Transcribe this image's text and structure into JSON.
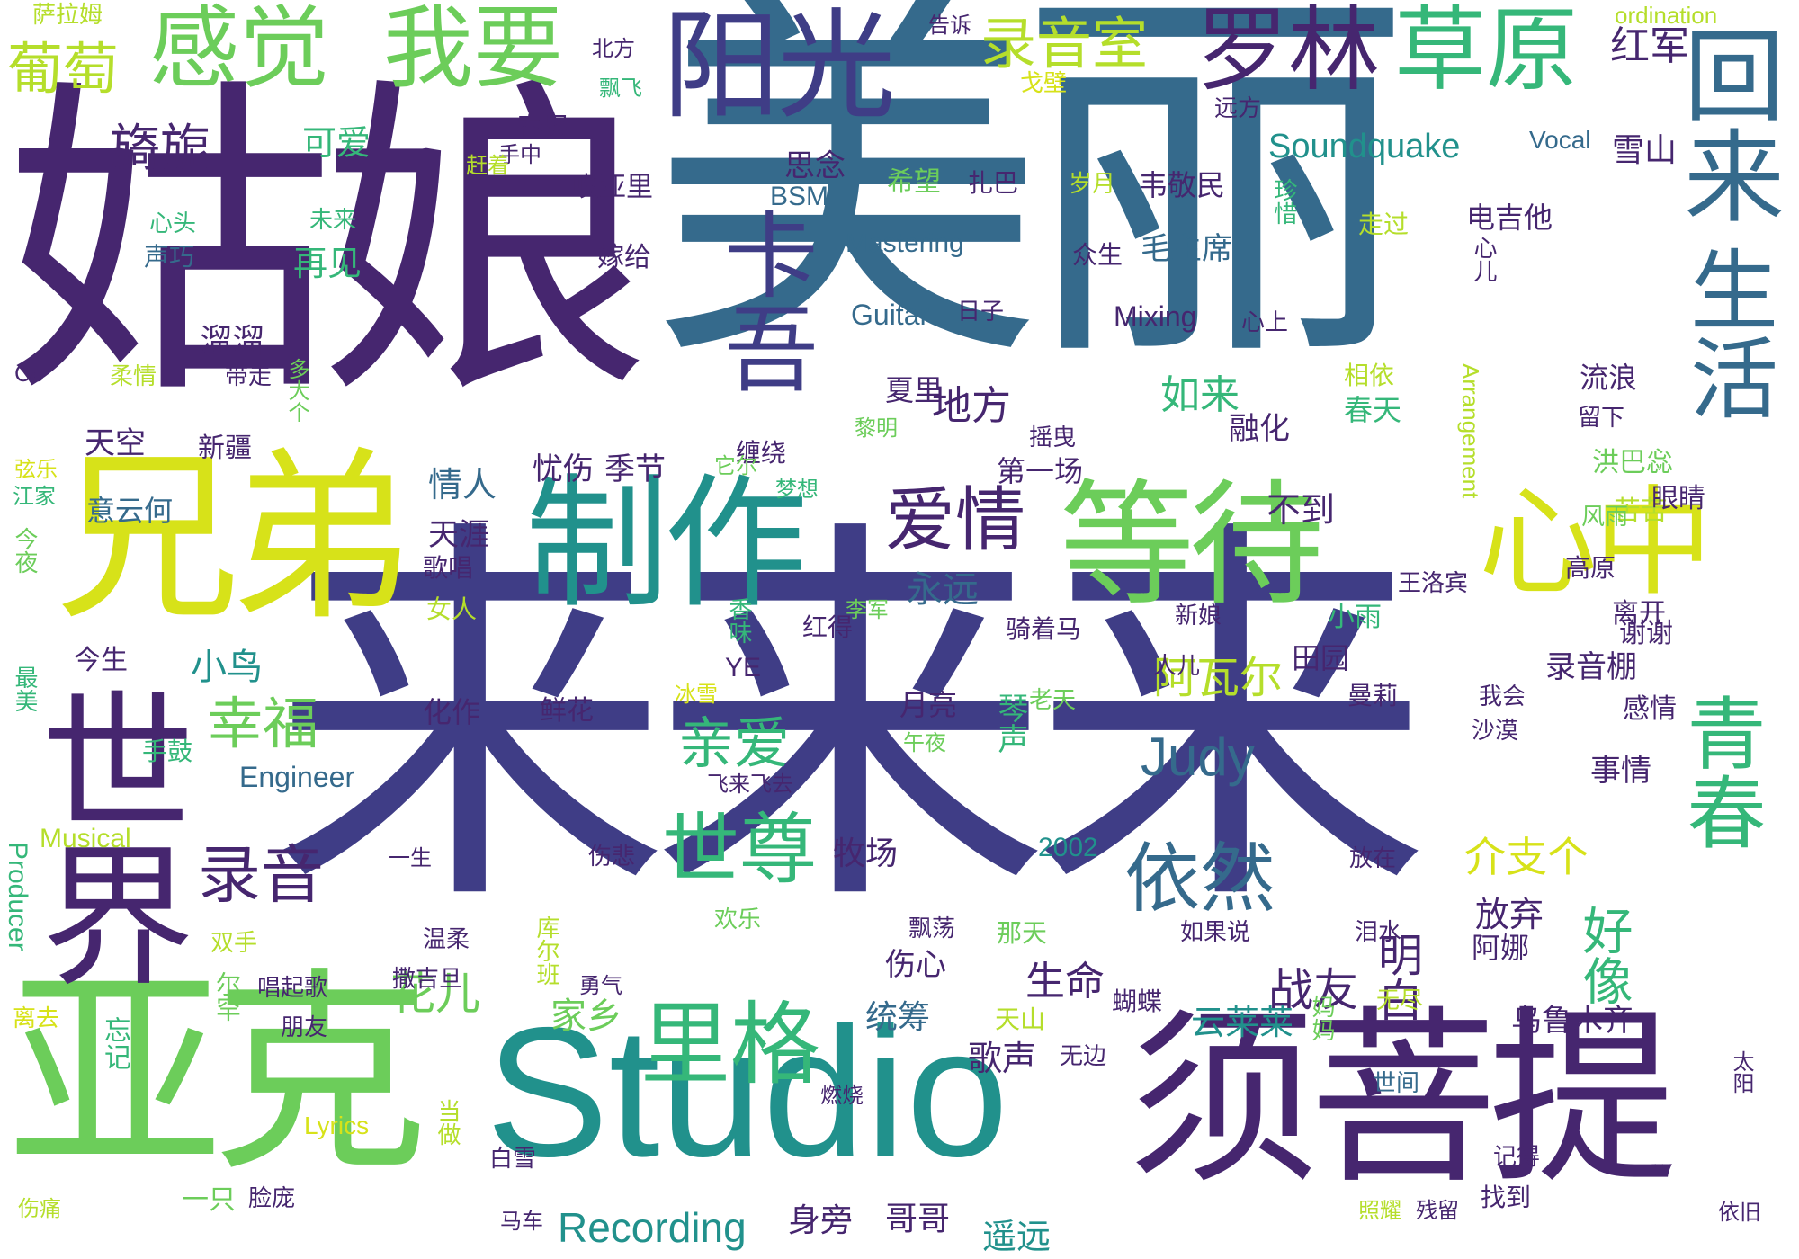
{
  "palette": {
    "background": "#ffffff",
    "dark_purple": "#46266f",
    "indigo": "#3f3d86",
    "blue": "#356a8c",
    "teal": "#21918c",
    "green": "#35b779",
    "light_green": "#6ccd5a",
    "yellow_green": "#b5de2b",
    "yellow": "#d7e219"
  },
  "words": {
    "meili": "美丽",
    "guniang": "姑娘",
    "laila": "来来来",
    "yake": "亚克",
    "studio": "Studio",
    "xuputi": "须菩提",
    "xiongdi": "兄弟",
    "zhizuo": "制作",
    "dengdai": "等待",
    "xinzhong": "心中",
    "yangguang": "阳光",
    "luolin": "罗林",
    "caoyuan": "草原",
    "ganjue": "感觉",
    "woyao": "我要",
    "huilai": "回来",
    "shenghuo": "生活",
    "putao": "葡萄",
    "luyinshi": "录音室",
    "qingchun": "青春",
    "kawa": "卡吾",
    "shijie": "世界",
    "shizun": "世尊",
    "aiqing": "爱情",
    "yiran": "依然",
    "lige": "里格",
    "luyin": "录音",
    "judy": "Judy",
    "qinai": "亲爱",
    "xingfu": "幸福",
    "soundquake": "Soundquake",
    "recording": "Recording",
    "hongjun": "红军",
    "xueshan": "雪山",
    "qixuan": "旖旎",
    "haoxiang": "好像",
    "jiezhige": "介支个",
    "mingbai": "明白",
    "zhanyou": "战友",
    "huaer": "花儿",
    "jiaxiang": "家乡",
    "awaer": "阿瓦尔",
    "shengming": "生命",
    "yunlailai": "云莱莱",
    "gesheng": "歌声",
    "yaoyuan": "遥远",
    "gege": "哥哥",
    "shenpang": "身旁",
    "difang": "地方",
    "rulai": "如来",
    "luyinpeng": "录音棚",
    "xiaoniao": "小鸟",
    "yongyuan": "永远",
    "budao": "不到",
    "tianya": "天涯",
    "qingren": "情人",
    "jijie": "季节",
    "youshang": "忧伤",
    "tiankong": "天空",
    "xinjiang": "新疆",
    "diyichang": "第一场",
    "ronghua": "融化",
    "sinian": "思念",
    "keai": "可爱",
    "zaijian": "再见",
    "liuliu": "溜溜",
    "daizou": "带走",
    "maozhuxi": "毛主席",
    "zhongsheng": "众生",
    "weiminmin": "韦敬民",
    "dianjita": "电吉他",
    "xiwang": "希望",
    "zhaba": "扎巴",
    "suiyue": "岁月",
    "bsm": "BSM",
    "aiyali": "哎亚里",
    "jiageii": "嫁给",
    "chunfeng": "春风",
    "beifang": "北方",
    "yuanfang": "远方",
    "piaofei": "飘飞",
    "gaosu": "告诉",
    "gebi": "戈壁",
    "vocal": "Vocal",
    "ordination": "ordination",
    "salamu": "萨拉姆",
    "mastering": "Mastering",
    "guitar": "Guitar",
    "mixing": "Mixing",
    "rizi": "日子",
    "xinshang": "心上",
    "xiner": "心儿",
    "zouguo": "走过",
    "zhenxi": "珍惜",
    "shouzhong": "手中",
    "ganzhe": "赶着",
    "xintou": "心头",
    "weilai": "未来",
    "shengqiao": "声巧",
    "co": "Co",
    "rouqing": "柔情",
    "duodage": "多大个",
    "xiangyi": "相依",
    "chuntian": "春天",
    "liulang": "流浪",
    "liuxia": "留下",
    "arrangement": "Arrangement",
    "xialii": "夏里",
    "liming": "黎明",
    "yaoye": "摇曳",
    "chanrao": "缠绕",
    "taer": "它尔",
    "mengxiang": "梦想",
    "hongbaci": "洪巴惢",
    "kuku": "苦苦",
    "yanjing": "眼睛",
    "fengyu": "风雨",
    "gaoyuan": "高原",
    "wangluobin": "王洛宾",
    "xiaoyu": "小雨",
    "tianyuan": "田园",
    "likai": "离开",
    "xiexie": "谢谢",
    "xianshu": "弦乐",
    "jiangjia": "江家",
    "yiyunhe": "意云何",
    "jinye": "今夜",
    "gechang": "歌唱",
    "nvren": "女人",
    "jinsheng": "今生",
    "zuimei": "最美",
    "lijun": "李军",
    "xiangwei": "香味",
    "hongde": "红得",
    "qizhema": "骑着马",
    "xinniang": "新娘",
    "renr": "人儿",
    "laotian": "老天",
    "qinsheng": "琴声",
    "yueliang": "月亮",
    "ye": "YE",
    "huazuo": "化作",
    "xianhua": "鲜花",
    "bingxue": "冰雪",
    "manli": "曼莉",
    "wohui": "我会",
    "shamo": "沙漠",
    "ganqing": "感情",
    "shiqing": "事情",
    "shougu": "手鼓",
    "wuye": "午夜",
    "feilaifeiqu": "飞来飞去",
    "engineer": "Engineer",
    "musical": "Musical",
    "producer": "Producer",
    "yisheng": "一生",
    "shangbei": "伤悲",
    "y2002": "2002",
    "muchang": "牧场",
    "fangzai": "放在",
    "fangqi": "放弃",
    "ana": "阿娜",
    "leishui": "泪水",
    "ruguoshuo": "如果说",
    "piaodang": "飘荡",
    "natian": "那天",
    "huanle": "欢乐",
    "kuerban": "库尔班",
    "wenrou": "温柔",
    "shuangshou": "双手",
    "sajidan": "撒吉旦",
    "erhan": "尔罕",
    "yongqi": "勇气",
    "shangxin": "伤心",
    "tongchou": "统筹",
    "tianshan": "天山",
    "hudie": "蝴蝶",
    "wulumuqi": "乌鲁木齐",
    "wujin": "无尽",
    "wubian": "无边",
    "taiyang": "太阳",
    "pengyou": "朋友",
    "changqige": "唱起歌",
    "liqu": "离去",
    "wangji": "忘记",
    "mama": "妈妈",
    "ranshao": "燃烧",
    "shijian": "世间",
    "dangzuo": "当做",
    "lyrics": "Lyrics",
    "baixue": "白雪",
    "jide": "记得",
    "yizhi": "一只",
    "lianpang": "脸庞",
    "shangtong": "伤痛",
    "mache": "马车",
    "zhaoyao": "照耀",
    "canliu": "残留",
    "zhaodao": "找到",
    "yijiu": "依旧"
  }
}
